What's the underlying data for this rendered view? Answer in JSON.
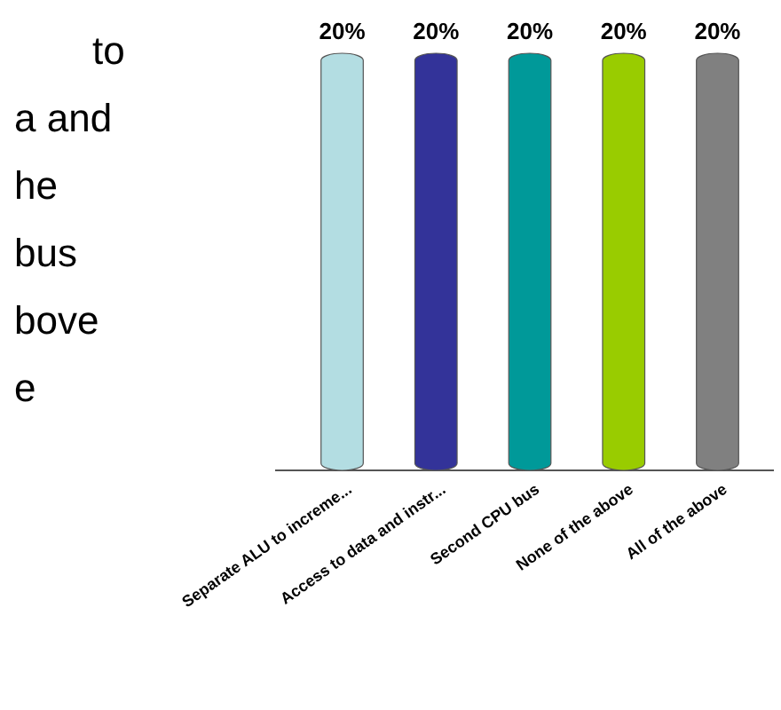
{
  "chart_data": {
    "type": "bar",
    "categories": [
      "Separate ALU to increme...",
      "Access to data and instr...",
      "Second CPU bus",
      "None of the above",
      "All of the above"
    ],
    "values": [
      20,
      20,
      20,
      20,
      20
    ],
    "colors": [
      "#b3dde2",
      "#333399",
      "#009999",
      "#99cc00",
      "#808080"
    ],
    "value_labels": [
      "20%",
      "20%",
      "20%",
      "20%",
      "20%"
    ],
    "annotations": [
      "to",
      "a and",
      "he",
      "bus",
      "bove",
      "e"
    ]
  }
}
